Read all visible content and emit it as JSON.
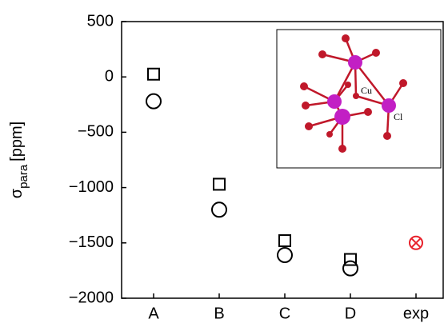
{
  "chart_data": {
    "type": "scatter",
    "categories": [
      "A",
      "B",
      "C",
      "D",
      "exp"
    ],
    "series": [
      {
        "marker": "square",
        "color": "#000000",
        "values": [
          25,
          -970,
          -1480,
          -1650,
          null
        ]
      },
      {
        "marker": "circle",
        "color": "#000000",
        "values": [
          -220,
          -1200,
          -1610,
          -1730,
          null
        ]
      },
      {
        "marker": "circle-x",
        "color": "#e8202a",
        "values": [
          null,
          null,
          null,
          null,
          -1500
        ]
      }
    ],
    "ylim": [
      -2000,
      500
    ],
    "yticks": [
      {
        "value": -2000,
        "label": "−2000"
      },
      {
        "value": -1500,
        "label": "−1500"
      },
      {
        "value": -1000,
        "label": "−1000"
      },
      {
        "value": -500,
        "label": "−500"
      },
      0,
      500
    ],
    "y_label": "σ",
    "y_label_subscript": "para",
    "y_label_unit": "[ppm]",
    "inset_labels": [
      "Cu",
      "Cl"
    ]
  }
}
